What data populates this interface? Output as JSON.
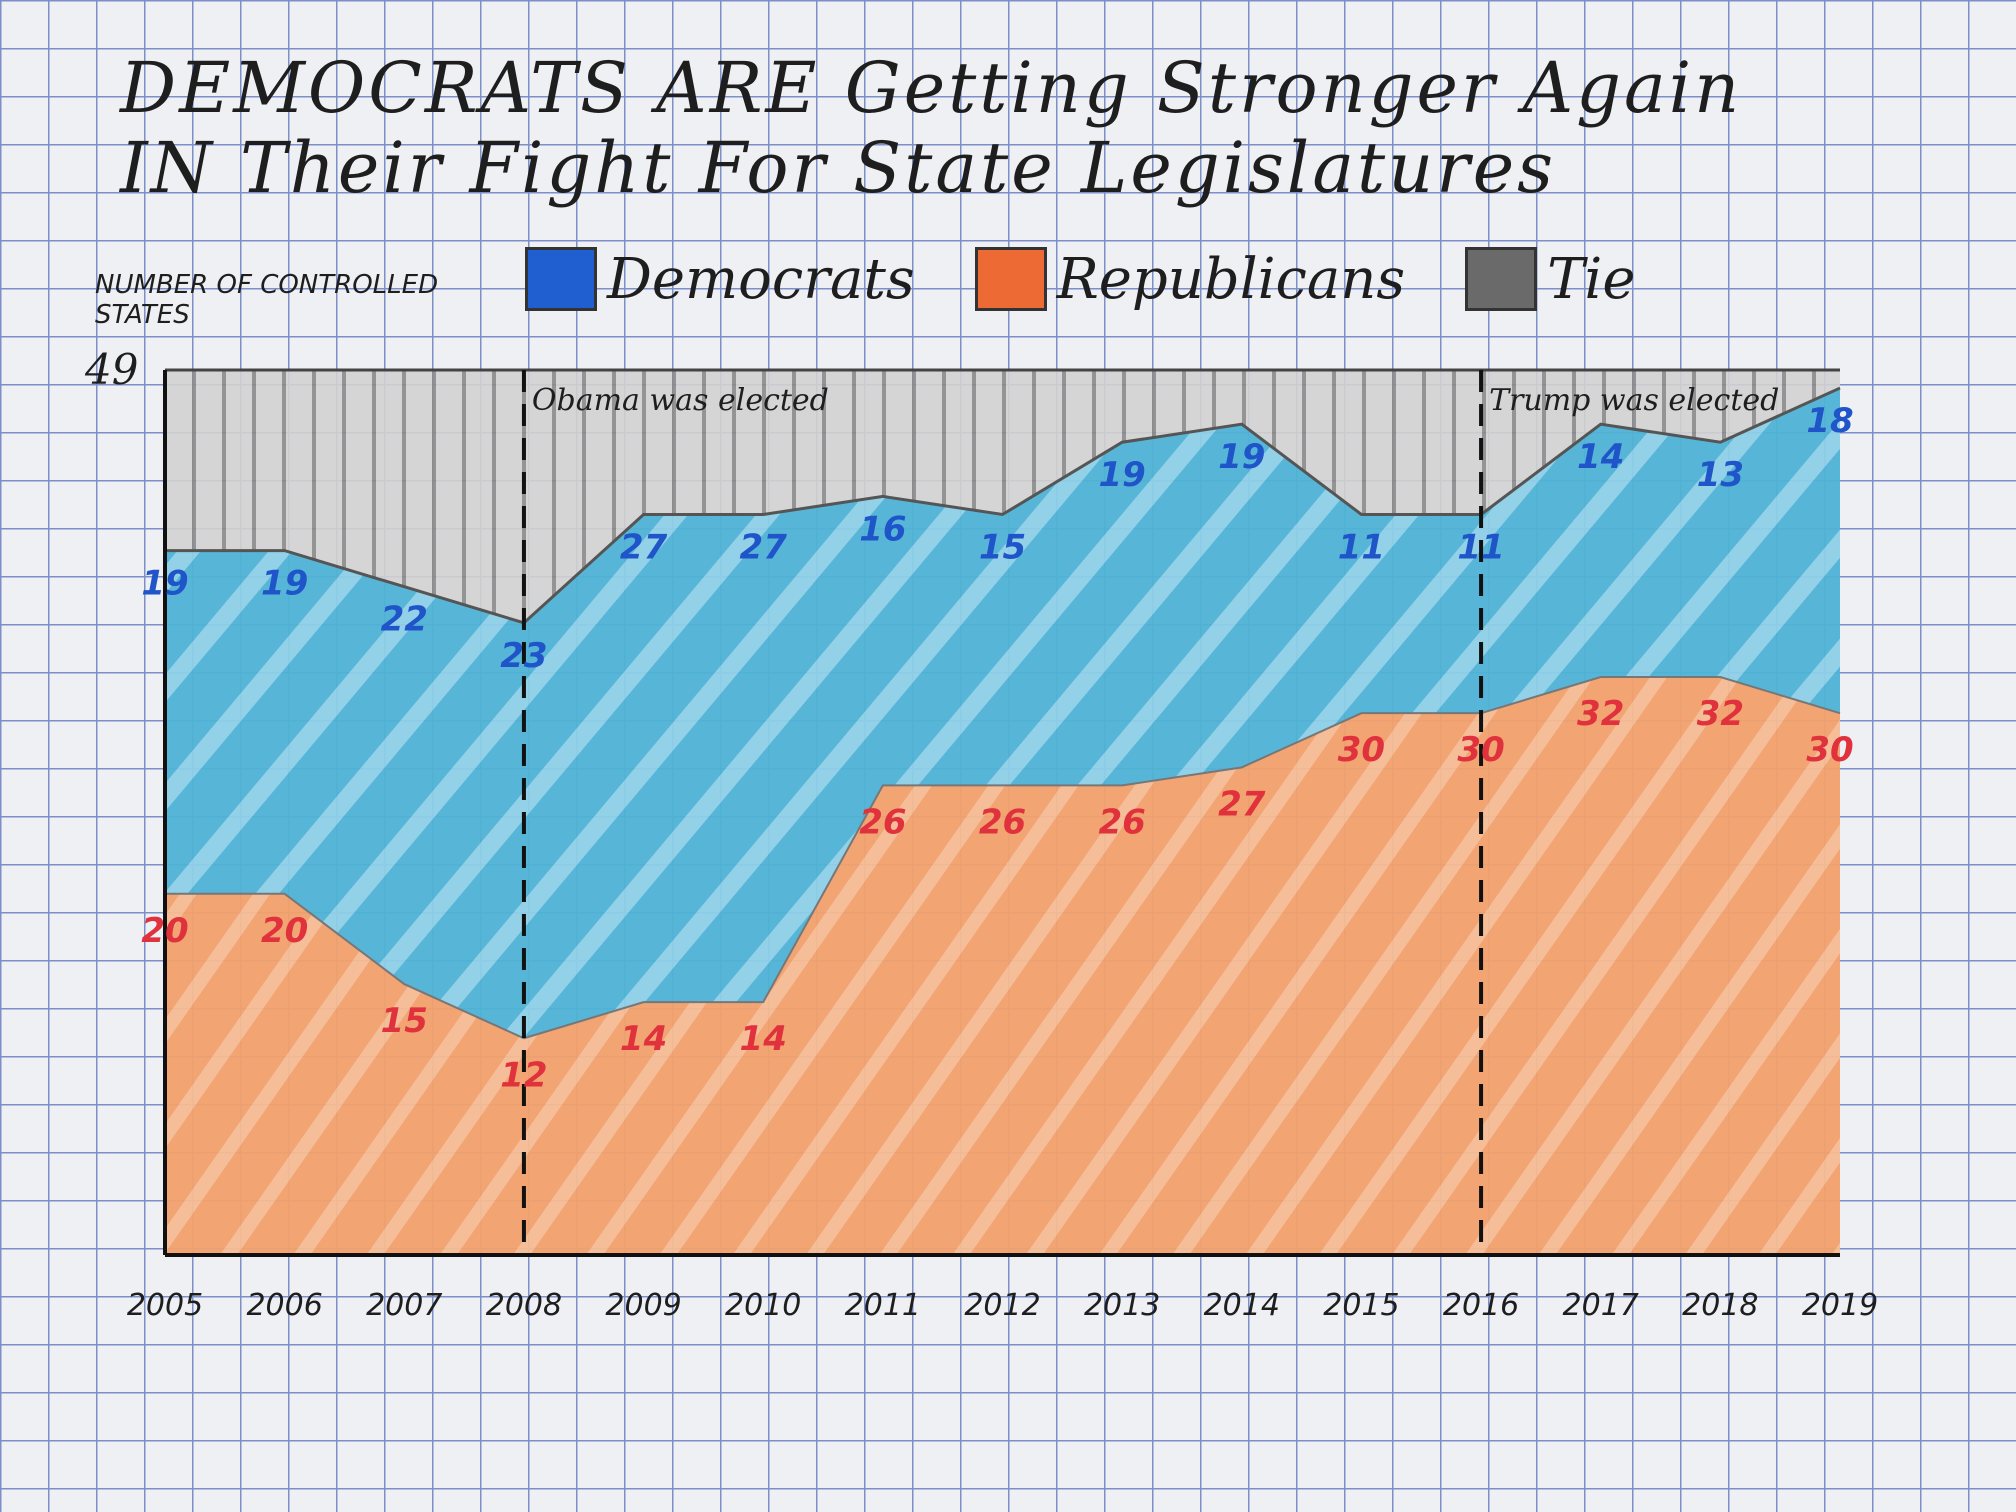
{
  "chart_data": {
    "type": "area",
    "title": "DEMOCRATS ARE Getting Stronger Again IN Their Fight For State Legislatures",
    "ylabel": "NUMBER OF CONTROLLED STATES",
    "ymax_label": "49",
    "ylim": [
      0,
      49
    ],
    "stacked": true,
    "x": [
      "2005",
      "2006",
      "2007",
      "2008",
      "2009",
      "2010",
      "2011",
      "2012",
      "2013",
      "2014",
      "2015",
      "2016",
      "2017",
      "2018",
      "2019"
    ],
    "series": [
      {
        "name": "Republicans",
        "color": "#f2a06c",
        "label_color": "#e0323c",
        "values": [
          20,
          20,
          15,
          12,
          14,
          14,
          26,
          26,
          26,
          27,
          30,
          30,
          32,
          32,
          30
        ]
      },
      {
        "name": "Democrats",
        "color": "#4fb3d6",
        "label_color": "#1f55c8",
        "values": [
          19,
          19,
          22,
          23,
          27,
          27,
          16,
          15,
          19,
          19,
          11,
          11,
          14,
          13,
          18
        ]
      },
      {
        "name": "Tie",
        "color": "#bfbfbf",
        "label_color": "#333333",
        "values": [
          10,
          10,
          12,
          14,
          8,
          8,
          7,
          8,
          4,
          3,
          8,
          8,
          3,
          4,
          1
        ]
      }
    ],
    "legend_position": "top",
    "annotations": [
      {
        "x": "2008",
        "text": "Obama was elected"
      },
      {
        "x": "2016",
        "text": "Trump was elected"
      }
    ],
    "grid": true
  }
}
